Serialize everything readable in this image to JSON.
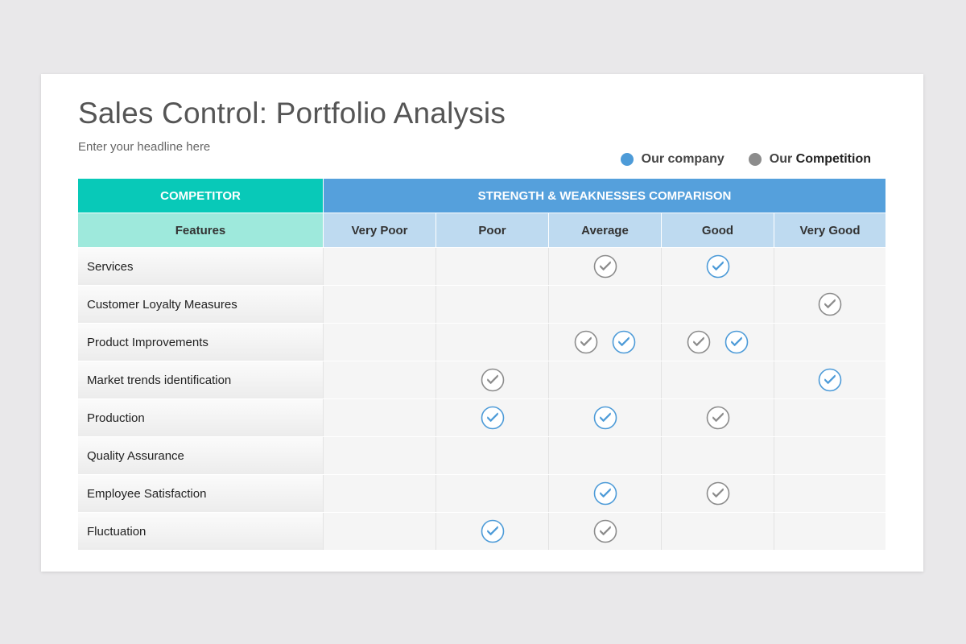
{
  "title": "Sales Control: Portfolio Analysis",
  "subtitle": "Enter your headline here",
  "legend": {
    "company": {
      "label": "Our company",
      "color": "#4d9bd8"
    },
    "competition": {
      "label_prefix": "Our ",
      "label_strong": "Competition",
      "color": "#8c8c8c"
    }
  },
  "table": {
    "header_competitor": "COMPETITOR",
    "header_comparison": "STRENGTH & WEAKNESSES COMPARISON",
    "features_label": "Features",
    "levels": [
      "Very Poor",
      "Poor",
      "Average",
      "Good",
      "Very Good"
    ],
    "rows": [
      {
        "feature": "Services",
        "company": [
          "Good"
        ],
        "competition": [
          "Average"
        ]
      },
      {
        "feature": "Customer Loyalty Measures",
        "company": [],
        "competition": [
          "Very Good"
        ]
      },
      {
        "feature": "Product Improvements",
        "company": [
          "Average",
          "Good"
        ],
        "competition": [
          "Average",
          "Good"
        ]
      },
      {
        "feature": "Market trends identification",
        "company": [
          "Very Good"
        ],
        "competition": [
          "Poor"
        ]
      },
      {
        "feature": "Production",
        "company": [
          "Poor",
          "Average"
        ],
        "competition": [
          "Good"
        ]
      },
      {
        "feature": "Quality Assurance",
        "company": [],
        "competition": []
      },
      {
        "feature": "Employee Satisfaction",
        "company": [
          "Average"
        ],
        "competition": [
          "Good"
        ]
      },
      {
        "feature": "Fluctuation",
        "company": [
          "Poor"
        ],
        "competition": [
          "Average"
        ]
      }
    ]
  },
  "colors": {
    "competitor_header": "#08c9b8",
    "comparison_header": "#55a0dc",
    "features_header": "#9ee9dc",
    "level_header": "#bedaf0",
    "check_company": "#4d9bd8",
    "check_competition": "#8c8c8c"
  },
  "icons": {
    "company_check": "check-circle-icon",
    "competition_check": "check-circle-icon"
  }
}
